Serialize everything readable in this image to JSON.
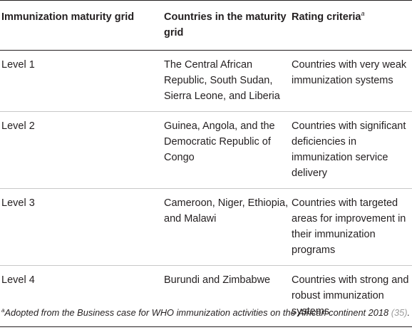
{
  "headers": {
    "col1": "Immunization maturity grid",
    "col2": "Countries in the maturity grid",
    "col3": "Rating criteria",
    "col3_marker": "a"
  },
  "rows": [
    {
      "level": "Level 1",
      "countries": "The Central African Republic, South Sudan, Sierra Leone, and Liberia",
      "criteria": "Countries with very weak immunization systems"
    },
    {
      "level": "Level 2",
      "countries": "Guinea, Angola, and the Democratic Republic of Congo",
      "criteria": "Countries with significant deficiencies in immunization service delivery"
    },
    {
      "level": "Level 3",
      "countries": "Cameroon, Niger, Ethiopia, and Malawi",
      "criteria": "Countries with targeted areas for improvement in their immunization programs"
    },
    {
      "level": "Level 4",
      "countries": "Burundi and Zimbabwe",
      "criteria": "Countries with strong and robust immunization systems"
    }
  ],
  "footnote": {
    "marker": "a",
    "text": "Adopted from the Business case for WHO immunization activities on the African continent 2018",
    "ref": "(35)",
    "end": "."
  }
}
